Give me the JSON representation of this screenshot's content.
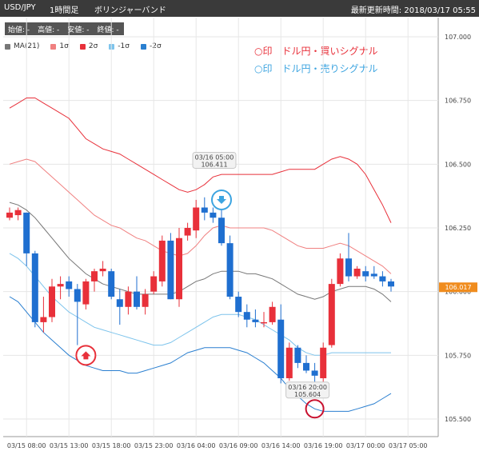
{
  "header": {
    "symbol": "USD/JPY",
    "timeframe": "1時間足",
    "indicator": "ボリンジャーバンド",
    "updated_label": "最新更新時間: 2018/03/17 05:55"
  },
  "ohlc_bar": {
    "open": "始値: -",
    "high": "高値: -",
    "low": "安値: -",
    "close": "終値: -"
  },
  "legend": [
    {
      "label": "MA(21)",
      "color": "#777777"
    },
    {
      "label": "1σ",
      "color": "#f08080"
    },
    {
      "label": "2σ",
      "color": "#e8303a"
    },
    {
      "label": "-1σ",
      "color": "#7ec4ec"
    },
    {
      "label": "-2σ",
      "color": "#2a7fd0"
    }
  ],
  "signals": {
    "buy_text": "○印　ドル円・買いシグナル",
    "sell_text": "○印　ドル円・売りシグナル",
    "buy_color": "#e8303a",
    "sell_color": "#3ca4e0"
  },
  "chart_data": {
    "type": "candlestick",
    "ylim": [
      105.45,
      107.05
    ],
    "y_ticks": [
      "107.000",
      "106.750",
      "106.500",
      "106.250",
      "106.000",
      "105.750",
      "105.500"
    ],
    "x_ticks": [
      "03/15 08:00",
      "03/15 13:00",
      "03/15 18:00",
      "03/15 23:00",
      "03/16 04:00",
      "03/16 09:00",
      "03/16 14:00",
      "03/16 19:00",
      "03/17 00:00",
      "03/17 05:00"
    ],
    "last_price": "106.017",
    "up_color": "#e8303a",
    "down_color": "#1f6fd0",
    "candles": [
      {
        "o": 106.29,
        "h": 106.33,
        "l": 106.28,
        "c": 106.31
      },
      {
        "o": 106.3,
        "h": 106.33,
        "l": 106.28,
        "c": 106.32
      },
      {
        "o": 106.31,
        "h": 106.31,
        "l": 106.1,
        "c": 106.15
      },
      {
        "o": 106.15,
        "h": 106.16,
        "l": 105.86,
        "c": 105.88
      },
      {
        "o": 105.88,
        "h": 105.98,
        "l": 105.84,
        "c": 105.9
      },
      {
        "o": 105.9,
        "h": 106.05,
        "l": 105.88,
        "c": 106.02
      },
      {
        "o": 106.02,
        "h": 106.06,
        "l": 105.97,
        "c": 106.03
      },
      {
        "o": 106.04,
        "h": 106.06,
        "l": 105.98,
        "c": 106.01
      },
      {
        "o": 106.01,
        "h": 106.03,
        "l": 105.79,
        "c": 105.96
      },
      {
        "o": 105.95,
        "h": 106.05,
        "l": 105.93,
        "c": 106.04
      },
      {
        "o": 106.04,
        "h": 106.09,
        "l": 106.0,
        "c": 106.08
      },
      {
        "o": 106.08,
        "h": 106.12,
        "l": 106.06,
        "c": 106.09
      },
      {
        "o": 106.08,
        "h": 106.09,
        "l": 105.97,
        "c": 105.98
      },
      {
        "o": 105.97,
        "h": 106.01,
        "l": 105.87,
        "c": 105.94
      },
      {
        "o": 105.94,
        "h": 106.02,
        "l": 105.91,
        "c": 106.0
      },
      {
        "o": 106.0,
        "h": 106.06,
        "l": 105.93,
        "c": 105.94
      },
      {
        "o": 105.94,
        "h": 106.01,
        "l": 105.91,
        "c": 105.99
      },
      {
        "o": 106.0,
        "h": 106.08,
        "l": 105.99,
        "c": 106.06
      },
      {
        "o": 106.04,
        "h": 106.22,
        "l": 106.02,
        "c": 106.2
      },
      {
        "o": 106.2,
        "h": 106.23,
        "l": 105.97,
        "c": 105.97
      },
      {
        "o": 105.97,
        "h": 106.25,
        "l": 105.94,
        "c": 106.21
      },
      {
        "o": 106.22,
        "h": 106.27,
        "l": 106.2,
        "c": 106.25
      },
      {
        "o": 106.24,
        "h": 106.36,
        "l": 106.21,
        "c": 106.33
      },
      {
        "o": 106.33,
        "h": 106.37,
        "l": 106.28,
        "c": 106.31
      },
      {
        "o": 106.31,
        "h": 106.33,
        "l": 106.27,
        "c": 106.29
      },
      {
        "o": 106.29,
        "h": 106.34,
        "l": 106.18,
        "c": 106.19
      },
      {
        "o": 106.19,
        "h": 106.22,
        "l": 105.97,
        "c": 105.98
      },
      {
        "o": 105.98,
        "h": 106.0,
        "l": 105.9,
        "c": 105.92
      },
      {
        "o": 105.92,
        "h": 105.95,
        "l": 105.86,
        "c": 105.89
      },
      {
        "o": 105.89,
        "h": 105.93,
        "l": 105.86,
        "c": 105.88
      },
      {
        "o": 105.88,
        "h": 105.92,
        "l": 105.86,
        "c": 105.88
      },
      {
        "o": 105.88,
        "h": 105.96,
        "l": 105.87,
        "c": 105.94
      },
      {
        "o": 105.89,
        "h": 105.95,
        "l": 105.64,
        "c": 105.66
      },
      {
        "o": 105.66,
        "h": 105.8,
        "l": 105.65,
        "c": 105.78
      },
      {
        "o": 105.78,
        "h": 105.79,
        "l": 105.7,
        "c": 105.72
      },
      {
        "o": 105.72,
        "h": 105.75,
        "l": 105.68,
        "c": 105.69
      },
      {
        "o": 105.69,
        "h": 105.72,
        "l": 105.64,
        "c": 105.67
      },
      {
        "o": 105.66,
        "h": 105.8,
        "l": 105.64,
        "c": 105.78
      },
      {
        "o": 105.79,
        "h": 106.05,
        "l": 105.78,
        "c": 106.03
      },
      {
        "o": 106.03,
        "h": 106.15,
        "l": 106.02,
        "c": 106.13
      },
      {
        "o": 106.13,
        "h": 106.23,
        "l": 106.04,
        "c": 106.06
      },
      {
        "o": 106.06,
        "h": 106.1,
        "l": 106.05,
        "c": 106.09
      },
      {
        "o": 106.08,
        "h": 106.1,
        "l": 106.04,
        "c": 106.06
      },
      {
        "o": 106.07,
        "h": 106.1,
        "l": 106.05,
        "c": 106.06
      },
      {
        "o": 106.06,
        "h": 106.08,
        "l": 106.02,
        "c": 106.04
      },
      {
        "o": 106.04,
        "h": 106.05,
        "l": 106.0,
        "c": 106.02
      }
    ],
    "bands": {
      "plus2": [
        106.72,
        106.74,
        106.76,
        106.76,
        106.74,
        106.72,
        106.7,
        106.68,
        106.64,
        106.6,
        106.58,
        106.56,
        106.55,
        106.54,
        106.52,
        106.5,
        106.48,
        106.46,
        106.44,
        106.42,
        106.4,
        106.39,
        106.4,
        106.42,
        106.45,
        106.46,
        106.46,
        106.46,
        106.46,
        106.46,
        106.46,
        106.46,
        106.47,
        106.48,
        106.48,
        106.48,
        106.48,
        106.5,
        106.52,
        106.53,
        106.52,
        106.5,
        106.46,
        106.4,
        106.34,
        106.27
      ],
      "plus1": [
        106.5,
        106.51,
        106.52,
        106.51,
        106.48,
        106.45,
        106.42,
        106.39,
        106.36,
        106.33,
        106.3,
        106.28,
        106.26,
        106.25,
        106.23,
        106.21,
        106.2,
        106.18,
        106.16,
        106.15,
        106.14,
        106.15,
        106.18,
        106.22,
        106.25,
        106.26,
        106.25,
        106.25,
        106.25,
        106.25,
        106.25,
        106.24,
        106.22,
        106.2,
        106.18,
        106.17,
        106.17,
        106.17,
        106.18,
        106.19,
        106.18,
        106.16,
        106.14,
        106.12,
        106.1,
        106.07
      ],
      "ma": [
        106.35,
        106.34,
        106.32,
        106.29,
        106.25,
        106.21,
        106.17,
        106.13,
        106.1,
        106.07,
        106.05,
        106.03,
        106.02,
        106.01,
        106.0,
        105.99,
        105.99,
        105.99,
        105.99,
        105.99,
        106.0,
        106.02,
        106.04,
        106.05,
        106.07,
        106.08,
        106.08,
        106.08,
        106.07,
        106.07,
        106.06,
        106.05,
        106.03,
        106.01,
        105.99,
        105.98,
        105.97,
        105.98,
        106.0,
        106.01,
        106.02,
        106.02,
        106.02,
        106.01,
        105.99,
        105.96
      ],
      "minus1": [
        106.15,
        106.13,
        106.1,
        106.06,
        106.02,
        105.98,
        105.95,
        105.92,
        105.9,
        105.88,
        105.86,
        105.85,
        105.84,
        105.83,
        105.82,
        105.81,
        105.8,
        105.79,
        105.79,
        105.8,
        105.82,
        105.84,
        105.86,
        105.88,
        105.9,
        105.91,
        105.91,
        105.91,
        105.9,
        105.89,
        105.87,
        105.85,
        105.83,
        105.81,
        105.78,
        105.76,
        105.75,
        105.75,
        105.76,
        105.76,
        105.76,
        105.76,
        105.76,
        105.76,
        105.76,
        105.76
      ],
      "minus2": [
        105.98,
        105.96,
        105.92,
        105.88,
        105.84,
        105.81,
        105.78,
        105.75,
        105.73,
        105.71,
        105.7,
        105.69,
        105.69,
        105.69,
        105.68,
        105.68,
        105.69,
        105.7,
        105.71,
        105.72,
        105.74,
        105.76,
        105.77,
        105.78,
        105.78,
        105.78,
        105.78,
        105.77,
        105.76,
        105.74,
        105.72,
        105.69,
        105.66,
        105.62,
        105.59,
        105.56,
        105.54,
        105.53,
        105.53,
        105.53,
        105.53,
        105.54,
        105.55,
        105.56,
        105.58,
        105.6
      ]
    },
    "tooltips": [
      {
        "date": "03/16 05:00",
        "value": "106.411"
      },
      {
        "date": "03/16 20:00",
        "value": "105.604"
      }
    ]
  }
}
